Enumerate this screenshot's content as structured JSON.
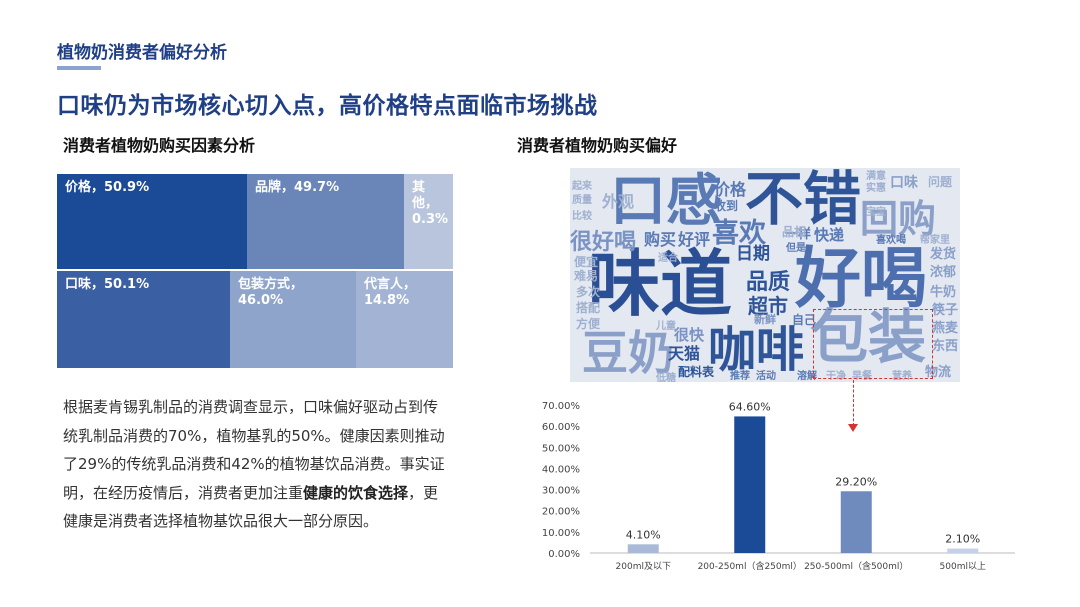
{
  "header": {
    "section_title": "植物奶消费者偏好分析",
    "headline": "口味仍为市场核心切入点，高价格特点面临市场挑战"
  },
  "left": {
    "subtitle": "消费者植物奶购买因素分析",
    "treemap": [
      {
        "label": "价格，50.9%",
        "color": "#1b4a97"
      },
      {
        "label": "品牌，49.7%",
        "color": "#6a85b8"
      },
      {
        "label": "其他，0.3%",
        "color": "#b8c5dd"
      },
      {
        "label": "口味，50.1%",
        "color": "#3b5fa3"
      },
      {
        "label": "包装方式，46.0%",
        "color": "#8fa4cb"
      },
      {
        "label": "代言人，14.8%",
        "color": "#a2b3d3"
      }
    ],
    "paragraph": {
      "part1": "根据麦肯锡乳制品的消费调查显示，口味偏好驱动占到传统乳制品消费的70%，植物基乳的50%。健康因素则推动了29%的传统乳品消费和42%的植物基饮品消费。事实证明，在经历疫情后，消费者更加注重",
      "bold": "健康的饮食选择",
      "part2": "，更健康是消费者选择植物基饮品很大一部分原因。"
    }
  },
  "right": {
    "subtitle": "消费者植物奶购买偏好",
    "wordcloud": {
      "words": [
        "口感",
        "不错",
        "回购",
        "味道",
        "好喝",
        "包装",
        "豆奶",
        "咖啡",
        "喜欢",
        "很好喝",
        "品质",
        "超市",
        "价格",
        "外观",
        "日期",
        "购买",
        "好评",
        "天猫",
        "配料表",
        "一样",
        "快递",
        "很快",
        "自己",
        "新鲜",
        "物流",
        "东西",
        "发货",
        "牛奶",
        "浓郁",
        "筷子",
        "燕麦",
        "多次",
        "搭配",
        "方便",
        "便宜",
        "难易",
        "品相",
        "收到",
        "适合",
        "推荐",
        "活动",
        "溶解",
        "干净",
        "早餐",
        "营养",
        "实惠",
        "满意",
        "宝宝",
        "喜欢喝",
        "帮家里",
        "但是",
        "儿童",
        "口味",
        "问题",
        "比较",
        "起来",
        "质量",
        "低糖"
      ]
    }
  },
  "chart_data": {
    "type": "bar",
    "categories": [
      "200ml及以下",
      "200-250ml（含250ml）",
      "250-500ml（含500ml）",
      "500ml以上"
    ],
    "values": [
      4.1,
      64.6,
      29.2,
      2.1
    ],
    "value_labels": [
      "4.10%",
      "64.60%",
      "29.20%",
      "2.10%"
    ],
    "yticks": [
      "0.00%",
      "10.00%",
      "20.00%",
      "30.00%",
      "40.00%",
      "50.00%",
      "60.00%",
      "70.00%"
    ],
    "ylim": [
      0,
      70
    ],
    "grid": false,
    "bar_colors": [
      "#a9b9d6",
      "#1b4a97",
      "#6f8bbd",
      "#c5d1e6"
    ]
  }
}
